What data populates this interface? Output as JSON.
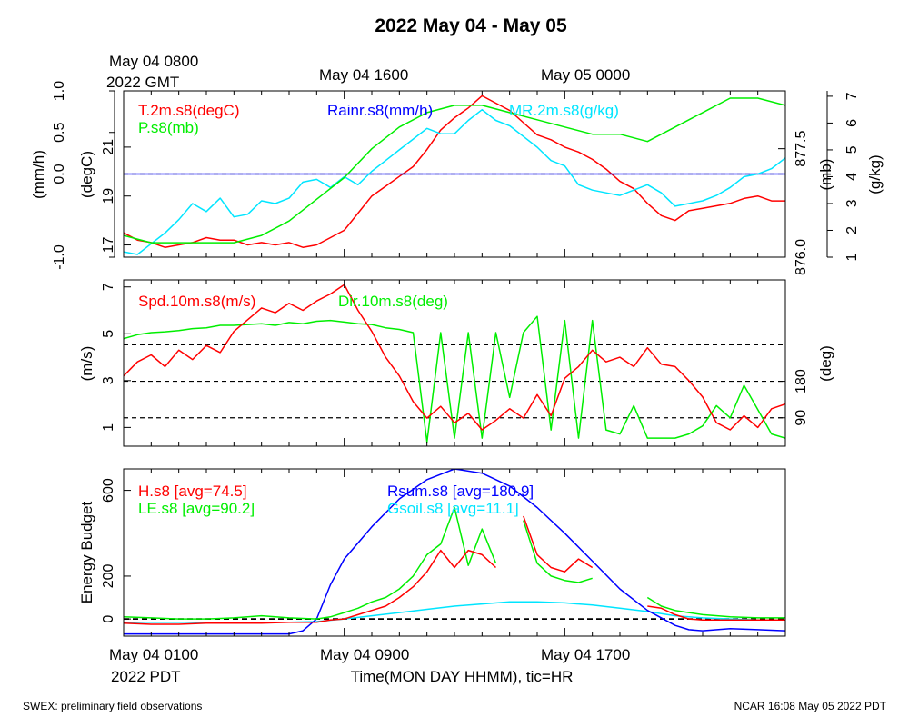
{
  "title": "2022 May 04 - May 05",
  "top_axis": {
    "labels": [
      {
        "line1": "May 04 0800",
        "line2": "2022 GMT"
      },
      {
        "line1": "May 04 1600",
        "line2": ""
      },
      {
        "line1": "May 05 0000",
        "line2": ""
      }
    ]
  },
  "bottom_axis": {
    "labels": [
      {
        "line1": "May 04 0100",
        "line2": "2022 PDT"
      },
      {
        "line1": "May 04 0900",
        "line2": ""
      },
      {
        "line1": "May 04 1700",
        "line2": ""
      }
    ],
    "xlabel": "Time(MON DAY HHMM), tic=HR"
  },
  "footer": {
    "left": "SWEX: preliminary field observations",
    "right": "NCAR 16:08 May 05 2022 PDT"
  },
  "colors": {
    "red": "#ff0000",
    "green": "#00ee00",
    "blue": "#0000ff",
    "cyan": "#00e5ff",
    "black": "#000000"
  },
  "chart_data": [
    {
      "type": "line",
      "x_unit": "hours since May 04 0100 PDT",
      "xlim": [
        0,
        24
      ],
      "axes": {
        "rain": {
          "label": "(mm/h)",
          "ylim": [
            -1.0,
            1.0
          ],
          "ticks": [
            "-1.0",
            "0.0",
            "0.5",
            "1.0"
          ],
          "tick_values": [
            -1.0,
            0.0,
            0.5,
            1.0
          ]
        },
        "temp": {
          "label": "(degC)",
          "ylim": [
            16.5,
            23.3
          ],
          "ticks": [
            "17",
            "19",
            "21"
          ],
          "tick_values": [
            17,
            19,
            21
          ]
        },
        "pres": {
          "label": "(mb)",
          "ylim": [
            876.0,
            878.3
          ],
          "ticks": [
            "876.0",
            "877.5"
          ],
          "tick_values": [
            876.0,
            877.5
          ]
        },
        "mr": {
          "label": "(g/kg)",
          "ylim": [
            1,
            7.2
          ],
          "ticks": [
            "1",
            "2",
            "3",
            "4",
            "5",
            "6",
            "7"
          ],
          "tick_values": [
            1,
            2,
            3,
            4,
            5,
            6,
            7
          ]
        }
      },
      "series": [
        {
          "name": "T.2m.s8(degC)",
          "color": "#ff0000",
          "axis": "temp",
          "x": [
            0,
            0.5,
            1,
            1.5,
            2,
            2.5,
            3,
            3.5,
            4,
            4.5,
            5,
            5.5,
            6,
            6.5,
            7,
            7.5,
            8,
            8.5,
            9,
            9.5,
            10,
            10.5,
            11,
            11.5,
            12,
            12.5,
            13,
            13.5,
            14,
            14.5,
            15,
            15.5,
            16,
            16.5,
            17,
            17.5,
            18,
            18.5,
            19,
            19.5,
            20,
            20.5,
            21,
            21.5,
            22,
            22.5,
            23,
            23.5,
            24
          ],
          "y": [
            17.5,
            17.2,
            17.1,
            16.9,
            17.0,
            17.1,
            17.3,
            17.2,
            17.2,
            17.0,
            17.1,
            17.0,
            17.1,
            16.9,
            17.0,
            17.3,
            17.6,
            18.3,
            19.0,
            19.4,
            19.8,
            20.2,
            20.9,
            21.7,
            22.2,
            22.6,
            23.1,
            22.8,
            22.5,
            22.0,
            21.5,
            21.3,
            21.0,
            20.8,
            20.5,
            20.1,
            19.6,
            19.3,
            18.7,
            18.2,
            18.0,
            18.4,
            18.5,
            18.6,
            18.7,
            18.9,
            19.0,
            18.8,
            18.8
          ]
        },
        {
          "name": "Rainr.s8(mm/h)",
          "color": "#0000ff",
          "axis": "rain",
          "x": [
            0,
            24
          ],
          "y": [
            0,
            0
          ]
        },
        {
          "name": "MR.2m.s8(g/kg)",
          "color": "#00e5ff",
          "axis": "mr",
          "x": [
            0,
            0.5,
            1,
            1.5,
            2,
            2.5,
            3,
            3.5,
            4,
            4.5,
            5,
            5.5,
            6,
            6.5,
            7,
            7.5,
            8,
            8.5,
            9,
            9.5,
            10,
            10.5,
            11,
            11.5,
            12,
            12.5,
            13,
            13.5,
            14,
            14.5,
            15,
            15.5,
            16,
            16.5,
            17,
            17.5,
            18,
            18.5,
            19,
            19.5,
            20,
            20.5,
            21,
            21.5,
            22,
            22.5,
            23,
            23.5,
            24
          ],
          "y": [
            1.2,
            1.1,
            1.5,
            1.9,
            2.4,
            3.0,
            2.7,
            3.2,
            2.5,
            2.6,
            3.1,
            3.0,
            3.2,
            3.8,
            3.9,
            3.6,
            4.0,
            3.7,
            4.2,
            4.6,
            5.0,
            5.4,
            5.8,
            5.6,
            5.6,
            6.1,
            6.5,
            6.1,
            5.9,
            5.5,
            5.1,
            4.6,
            4.4,
            3.7,
            3.5,
            3.4,
            3.3,
            3.5,
            3.7,
            3.4,
            2.9,
            3.0,
            3.1,
            3.3,
            3.6,
            4.0,
            4.1,
            4.3,
            4.7
          ]
        },
        {
          "name": "P.s8(mb)",
          "color": "#00ee00",
          "axis": "pres",
          "x": [
            0,
            1,
            2,
            3,
            4,
            5,
            6,
            7,
            8,
            9,
            10,
            11,
            12,
            13,
            14,
            15,
            16,
            17,
            18,
            19,
            20,
            21,
            22,
            23,
            24
          ],
          "y": [
            876.3,
            876.2,
            876.2,
            876.2,
            876.2,
            876.3,
            876.5,
            876.8,
            877.1,
            877.5,
            877.8,
            878.0,
            878.1,
            878.1,
            878.0,
            877.9,
            877.8,
            877.7,
            877.7,
            877.6,
            877.8,
            878.0,
            878.2,
            878.2,
            878.1
          ]
        }
      ]
    },
    {
      "type": "line",
      "x_unit": "hours since May 04 0100 PDT",
      "xlim": [
        0,
        24
      ],
      "axes": {
        "spd": {
          "label": "(m/s)",
          "ylim": [
            0.2,
            7.3
          ],
          "ticks": [
            "1",
            "3",
            "5",
            "7"
          ],
          "tick_values": [
            1,
            3,
            5,
            7
          ]
        },
        "dir": {
          "label": "(deg)",
          "ylim": [
            20,
            430
          ],
          "ticks": [
            "90",
            "180"
          ],
          "tick_values": [
            90,
            180
          ]
        }
      },
      "reference_lines": {
        "axis": "dir",
        "values": [
          90,
          180,
          270
        ]
      },
      "series": [
        {
          "name": "Spd.10m.s8(m/s)",
          "color": "#ff0000",
          "axis": "spd",
          "x": [
            0,
            0.5,
            1,
            1.5,
            2,
            2.5,
            3,
            3.5,
            4,
            4.5,
            5,
            5.5,
            6,
            6.5,
            7,
            7.5,
            8,
            8.5,
            9,
            9.5,
            10,
            10.5,
            11,
            11.5,
            12,
            12.5,
            13,
            13.5,
            14,
            14.5,
            15,
            15.5,
            16,
            16.5,
            17,
            17.5,
            18,
            18.5,
            19,
            19.5,
            20,
            20.5,
            21,
            21.5,
            22,
            22.5,
            23,
            23.5,
            24
          ],
          "y": [
            3.2,
            3.8,
            4.1,
            3.6,
            4.3,
            3.9,
            4.5,
            4.2,
            5.1,
            5.6,
            6.1,
            5.9,
            6.3,
            6.0,
            6.4,
            6.7,
            7.1,
            6.0,
            5.1,
            4.0,
            3.2,
            2.1,
            1.4,
            1.9,
            1.2,
            1.6,
            0.9,
            1.3,
            1.8,
            1.4,
            2.4,
            1.5,
            3.1,
            3.6,
            4.3,
            3.8,
            4.0,
            3.6,
            4.4,
            3.7,
            3.6,
            3.0,
            2.3,
            1.2,
            0.9,
            1.5,
            1.0,
            1.8,
            2.0
          ]
        },
        {
          "name": "Dir.10m.s8(deg)",
          "color": "#00ee00",
          "axis": "dir",
          "x": [
            0,
            0.5,
            1,
            1.5,
            2,
            2.5,
            3,
            3.5,
            4,
            4.5,
            5,
            5.5,
            6,
            6.5,
            7,
            7.5,
            8,
            8.5,
            9,
            9.5,
            10,
            10.5,
            11,
            11.5,
            12,
            12.5,
            13,
            13.5,
            14,
            14.5,
            15,
            15.5,
            16,
            16.5,
            17,
            17.5,
            18,
            18.5,
            19,
            19.5,
            20,
            20.5,
            21,
            21.5,
            22,
            22.5,
            23,
            23.5,
            24
          ],
          "y": [
            285,
            295,
            300,
            302,
            305,
            310,
            312,
            318,
            318,
            320,
            322,
            318,
            325,
            322,
            328,
            330,
            326,
            322,
            320,
            312,
            308,
            300,
            30,
            300,
            40,
            300,
            40,
            300,
            140,
            300,
            340,
            60,
            330,
            40,
            330,
            60,
            50,
            120,
            40,
            40,
            40,
            50,
            70,
            120,
            90,
            170,
            110,
            50,
            40
          ]
        }
      ]
    },
    {
      "type": "line",
      "x_unit": "hours since May 04 0100 PDT",
      "xlim": [
        0,
        24
      ],
      "ylabel": "Energy Budget",
      "ylim": [
        -80,
        700
      ],
      "yticks": [
        "0",
        "200",
        "600"
      ],
      "ytick_values": [
        0,
        200,
        600
      ],
      "reference_lines": {
        "values": [
          0
        ]
      },
      "series": [
        {
          "name": "H.s8 [avg=74.5]",
          "color": "#ff0000",
          "segments": [
            {
              "x": [
                0,
                1,
                2,
                3,
                4,
                5,
                6,
                7,
                7.5,
                8,
                8.5,
                9,
                9.5,
                10,
                10.5,
                11,
                11.5,
                12,
                12.5,
                13,
                13.5
              ],
              "y": [
                -20,
                -25,
                -25,
                -20,
                -20,
                -20,
                -15,
                -15,
                -5,
                0,
                20,
                40,
                60,
                100,
                150,
                220,
                320,
                240,
                320,
                300,
                240
              ]
            },
            {
              "x": [
                14.5,
                15,
                15.5,
                16,
                16.5,
                17
              ],
              "y": [
                480,
                300,
                240,
                220,
                280,
                240
              ]
            },
            {
              "x": [
                19,
                19.5,
                20,
                20.5,
                21,
                22,
                23,
                24
              ],
              "y": [
                60,
                50,
                20,
                0,
                -5,
                -5,
                -5,
                -5
              ]
            }
          ]
        },
        {
          "name": "LE.s8 [avg=90.2]",
          "color": "#00ee00",
          "segments": [
            {
              "x": [
                0,
                1,
                2,
                3,
                4,
                5,
                6,
                7,
                7.5,
                8,
                8.5,
                9,
                9.5,
                10,
                10.5,
                11,
                11.5,
                12,
                12.5,
                13,
                13.5
              ],
              "y": [
                10,
                5,
                0,
                0,
                5,
                15,
                5,
                0,
                10,
                30,
                50,
                80,
                100,
                140,
                200,
                300,
                350,
                520,
                250,
                420,
                260
              ]
            },
            {
              "x": [
                14.5,
                15,
                15.5,
                16,
                16.5,
                17
              ],
              "y": [
                460,
                260,
                200,
                180,
                170,
                190
              ]
            },
            {
              "x": [
                19,
                19.5,
                20,
                20.5,
                21,
                22,
                23,
                24
              ],
              "y": [
                100,
                60,
                40,
                30,
                20,
                10,
                5,
                5
              ]
            }
          ]
        },
        {
          "name": "Rsum.s8 [avg=180.9]",
          "color": "#0000ff",
          "segments": [
            {
              "x": [
                0,
                1,
                2,
                3,
                4,
                5,
                6,
                6.5,
                7,
                7.5,
                8,
                9,
                10,
                11,
                12,
                13,
                14,
                15,
                16,
                17,
                18,
                19,
                20,
                20.5,
                21,
                22,
                23,
                24
              ],
              "y": [
                -70,
                -70,
                -70,
                -70,
                -70,
                -70,
                -70,
                -55,
                0,
                160,
                280,
                430,
                560,
                650,
                700,
                680,
                620,
                520,
                400,
                270,
                140,
                40,
                -30,
                -50,
                -55,
                -45,
                -50,
                -55
              ]
            }
          ]
        },
        {
          "name": "Gsoil.s8 [avg=11.1]",
          "color": "#00e5ff",
          "segments": [
            {
              "x": [
                0,
                2,
                4,
                6,
                7,
                8,
                9,
                10,
                11,
                12,
                13,
                14,
                15,
                16,
                17,
                18,
                19,
                20,
                21,
                22,
                23,
                24
              ],
              "y": [
                -15,
                -15,
                -15,
                -15,
                -12,
                0,
                15,
                30,
                45,
                60,
                70,
                80,
                80,
                75,
                65,
                50,
                35,
                15,
                5,
                0,
                -5,
                -5
              ]
            }
          ]
        }
      ]
    }
  ]
}
